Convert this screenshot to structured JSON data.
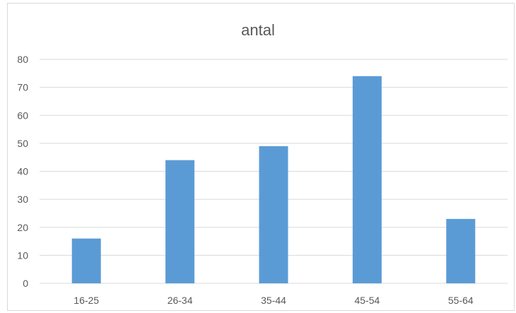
{
  "chart_data": {
    "type": "bar",
    "title": "antal",
    "categories": [
      "16-25",
      "26-34",
      "35-44",
      "45-54",
      "55-64"
    ],
    "values": [
      16,
      44,
      49,
      74,
      23
    ],
    "ylim": [
      0,
      80
    ],
    "yticks": [
      0,
      10,
      20,
      30,
      40,
      50,
      60,
      70,
      80
    ],
    "grid": true,
    "bar_color": "#5b9bd5",
    "grid_color": "#d9d9d9"
  }
}
